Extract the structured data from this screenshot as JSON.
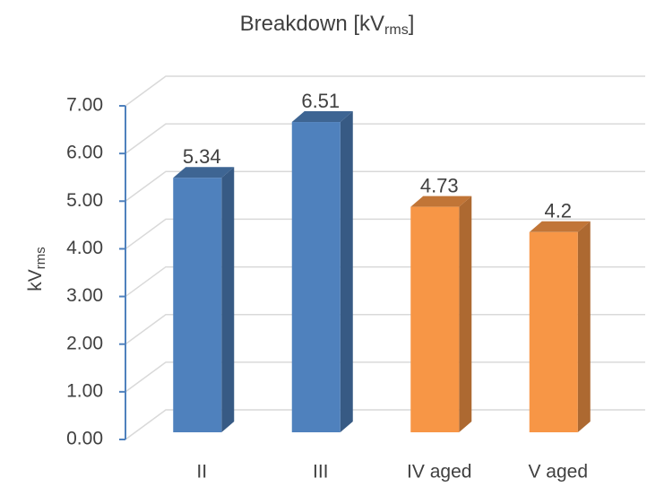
{
  "chart_data": {
    "type": "bar3d",
    "title": [
      "Breakdown [kV",
      "rms",
      "]"
    ],
    "ylabel": [
      "kV",
      "rms"
    ],
    "categories": [
      "II",
      "III",
      "IV aged",
      "V aged"
    ],
    "values": [
      5.34,
      6.51,
      4.73,
      4.2
    ],
    "colors": [
      "#4f81bd",
      "#4f81bd",
      "#f79646",
      "#f79646"
    ],
    "ylim": [
      0,
      7
    ],
    "yticks": [
      {
        "value": 0,
        "label": "0.00"
      },
      {
        "value": 1,
        "label": "1.00"
      },
      {
        "value": 2,
        "label": "2.00"
      },
      {
        "value": 3,
        "label": "3.00"
      },
      {
        "value": 4,
        "label": "4.00"
      },
      {
        "value": 5,
        "label": "5.00"
      },
      {
        "value": 6,
        "label": "6.00"
      },
      {
        "value": 7,
        "label": "7.00"
      }
    ],
    "grid": true
  }
}
